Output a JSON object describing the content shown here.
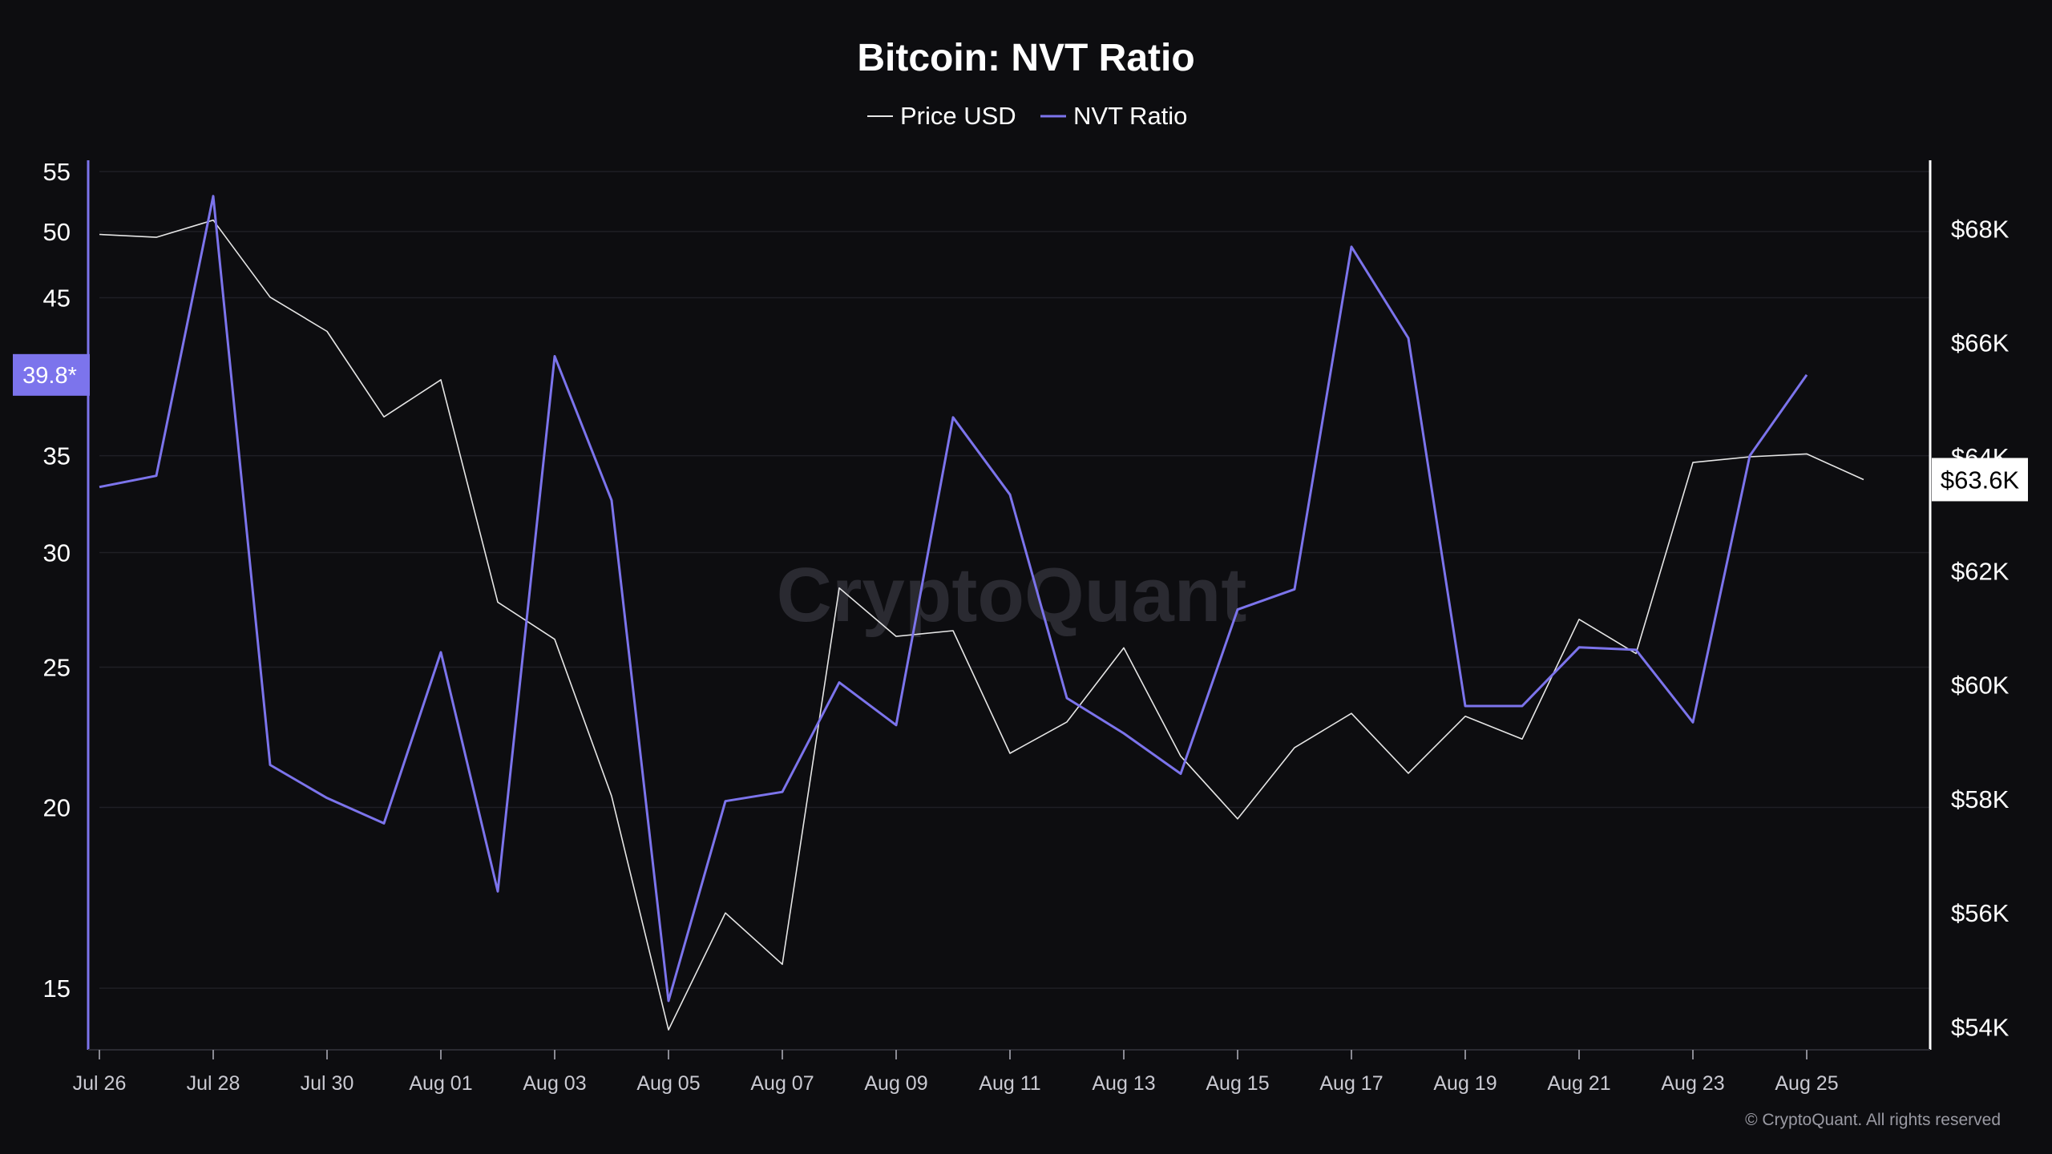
{
  "chart_data": {
    "type": "line",
    "title": "Bitcoin: NVT Ratio",
    "x": [
      "Jul 26",
      "Jul 27",
      "Jul 28",
      "Jul 29",
      "Jul 30",
      "Jul 31",
      "Aug 01",
      "Aug 02",
      "Aug 03",
      "Aug 04",
      "Aug 05",
      "Aug 06",
      "Aug 07",
      "Aug 08",
      "Aug 09",
      "Aug 10",
      "Aug 11",
      "Aug 12",
      "Aug 13",
      "Aug 14",
      "Aug 15",
      "Aug 16",
      "Aug 17",
      "Aug 18",
      "Aug 19",
      "Aug 20",
      "Aug 21",
      "Aug 22",
      "Aug 23",
      "Aug 24",
      "Aug 25",
      "Aug 26"
    ],
    "x_tick_labels": [
      "Jul 26",
      "Jul 28",
      "Jul 30",
      "Aug 01",
      "Aug 03",
      "Aug 05",
      "Aug 07",
      "Aug 09",
      "Aug 11",
      "Aug 13",
      "Aug 15",
      "Aug 17",
      "Aug 19",
      "Aug 21",
      "Aug 23",
      "Aug 25"
    ],
    "series": [
      {
        "name": "Price USD",
        "axis": "right",
        "color": "#e6e6e6",
        "values": [
          67900,
          67850,
          68150,
          66800,
          66200,
          64700,
          65350,
          61450,
          60800,
          58050,
          53950,
          56000,
          55100,
          61700,
          60850,
          60950,
          58800,
          59350,
          60650,
          58750,
          57650,
          58900,
          59500,
          58450,
          59450,
          59050,
          61150,
          60550,
          63900,
          64000,
          64050,
          63600
        ],
        "values_end_index": 31
      },
      {
        "name": "NVT Ratio",
        "axis": "left",
        "color": "#7c74ec",
        "values": [
          33.3,
          33.9,
          52.9,
          21.4,
          20.3,
          19.5,
          25.6,
          17.5,
          41.0,
          32.6,
          14.7,
          20.2,
          20.5,
          24.4,
          22.8,
          37.2,
          32.9,
          23.8,
          22.5,
          21.1,
          27.4,
          28.3,
          48.8,
          42.2,
          23.5,
          23.5,
          25.8,
          25.7,
          22.9,
          35.0,
          39.8,
          null
        ]
      }
    ],
    "y_left": {
      "scale": "log",
      "range": [
        13.6,
        56
      ],
      "ticks": [
        "15",
        "20",
        "25",
        "30",
        "35",
        "45",
        "50",
        "55"
      ],
      "tick_values": [
        15,
        20,
        25,
        30,
        35,
        45,
        50,
        55
      ],
      "current_badge": "39.8*",
      "current_value": 39.8
    },
    "y_right": {
      "range": [
        53600,
        69200
      ],
      "ticks": [
        "$54K",
        "$56K",
        "$58K",
        "$60K",
        "$62K",
        "$64K",
        "$66K",
        "$68K"
      ],
      "tick_values": [
        54000,
        56000,
        58000,
        60000,
        62000,
        64000,
        66000,
        68000
      ],
      "current_badge": "$63.6K",
      "current_value": 63600
    },
    "legend_position": "top-center",
    "grid": "horizontal",
    "watermark": "CryptoQuant",
    "copyright": "© CryptoQuant. All rights reserved"
  }
}
